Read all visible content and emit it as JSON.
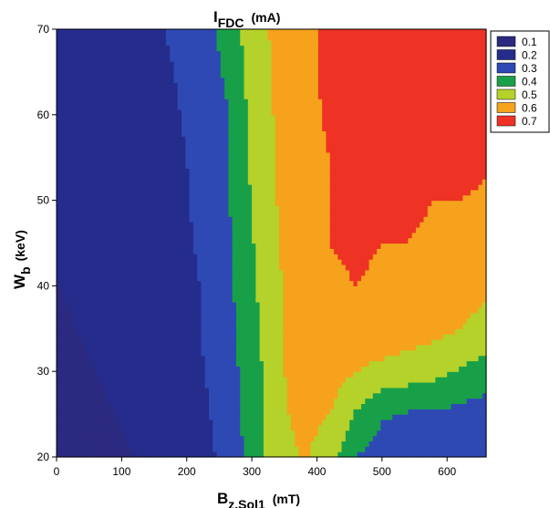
{
  "chart_data": {
    "type": "heatmap",
    "title": {
      "main": "I",
      "sub": "FDC",
      "unit": "(mA)"
    },
    "xlabel": {
      "main": "B",
      "sub": "z,Sol1",
      "unit": "(mT)"
    },
    "ylabel": {
      "main": "W",
      "sub": "b",
      "unit": "(keV)"
    },
    "xlim": [
      0,
      660
    ],
    "ylim": [
      20,
      70
    ],
    "x_ticks": [
      "0",
      "100",
      "200",
      "300",
      "400",
      "500",
      "600"
    ],
    "x_tick_values": [
      0,
      100,
      200,
      300,
      400,
      500,
      600
    ],
    "y_ticks": [
      "20",
      "30",
      "40",
      "50",
      "60",
      "70"
    ],
    "y_tick_values": [
      20,
      30,
      40,
      50,
      60,
      70
    ],
    "grid": false,
    "legend_position": "top-right, outside plot",
    "levels": [
      {
        "label": "0.1",
        "value": 0.1,
        "color": "#2b2a80"
      },
      {
        "label": "0.2",
        "value": 0.2,
        "color": "#252c8c"
      },
      {
        "label": "0.3",
        "value": 0.3,
        "color": "#2e49b4"
      },
      {
        "label": "0.4",
        "value": 0.4,
        "color": "#18a048"
      },
      {
        "label": "0.5",
        "value": 0.5,
        "color": "#b4d22a"
      },
      {
        "label": "0.6",
        "value": 0.6,
        "color": "#f6a21c"
      },
      {
        "label": "0.7",
        "value": 0.7,
        "color": "#ee3224"
      }
    ],
    "x_grid": [
      0,
      60,
      120,
      180,
      220,
      260,
      290,
      320,
      350,
      380,
      420,
      460,
      500,
      540,
      580,
      620,
      660
    ],
    "y_grid": [
      20,
      25,
      30,
      35,
      40,
      45,
      50,
      55,
      60,
      65,
      70
    ],
    "z": [
      [
        0.1,
        0.13,
        0.15,
        0.19,
        0.22,
        0.27,
        0.36,
        0.45,
        0.52,
        0.56,
        0.5,
        0.35,
        0.3,
        0.3,
        0.3,
        0.3,
        0.28
      ],
      [
        0.12,
        0.14,
        0.16,
        0.2,
        0.23,
        0.28,
        0.37,
        0.46,
        0.54,
        0.58,
        0.55,
        0.44,
        0.36,
        0.34,
        0.34,
        0.32,
        0.3
      ],
      [
        0.13,
        0.15,
        0.17,
        0.2,
        0.24,
        0.29,
        0.38,
        0.46,
        0.55,
        0.6,
        0.6,
        0.55,
        0.52,
        0.5,
        0.48,
        0.44,
        0.4
      ],
      [
        0.14,
        0.16,
        0.18,
        0.21,
        0.25,
        0.3,
        0.4,
        0.47,
        0.55,
        0.61,
        0.63,
        0.63,
        0.62,
        0.6,
        0.58,
        0.55,
        0.52
      ],
      [
        0.15,
        0.16,
        0.18,
        0.21,
        0.25,
        0.31,
        0.41,
        0.48,
        0.56,
        0.61,
        0.64,
        0.65,
        0.64,
        0.64,
        0.62,
        0.6,
        0.56
      ],
      [
        0.15,
        0.17,
        0.18,
        0.22,
        0.26,
        0.32,
        0.42,
        0.49,
        0.57,
        0.62,
        0.65,
        0.66,
        0.65,
        0.65,
        0.64,
        0.62,
        0.6
      ],
      [
        0.15,
        0.17,
        0.19,
        0.22,
        0.27,
        0.33,
        0.43,
        0.5,
        0.58,
        0.63,
        0.65,
        0.66,
        0.67,
        0.66,
        0.65,
        0.65,
        0.64
      ],
      [
        0.16,
        0.17,
        0.19,
        0.23,
        0.27,
        0.33,
        0.44,
        0.51,
        0.58,
        0.63,
        0.65,
        0.67,
        0.67,
        0.68,
        0.68,
        0.67,
        0.66
      ],
      [
        0.16,
        0.18,
        0.2,
        0.24,
        0.28,
        0.34,
        0.44,
        0.52,
        0.59,
        0.63,
        0.66,
        0.67,
        0.68,
        0.69,
        0.7,
        0.7,
        0.7
      ],
      [
        0.17,
        0.18,
        0.21,
        0.25,
        0.29,
        0.36,
        0.46,
        0.53,
        0.59,
        0.64,
        0.66,
        0.67,
        0.68,
        0.7,
        0.71,
        0.72,
        0.72
      ],
      [
        0.18,
        0.19,
        0.22,
        0.26,
        0.31,
        0.38,
        0.47,
        0.54,
        0.59,
        0.64,
        0.66,
        0.67,
        0.68,
        0.7,
        0.72,
        0.73,
        0.73
      ]
    ]
  }
}
